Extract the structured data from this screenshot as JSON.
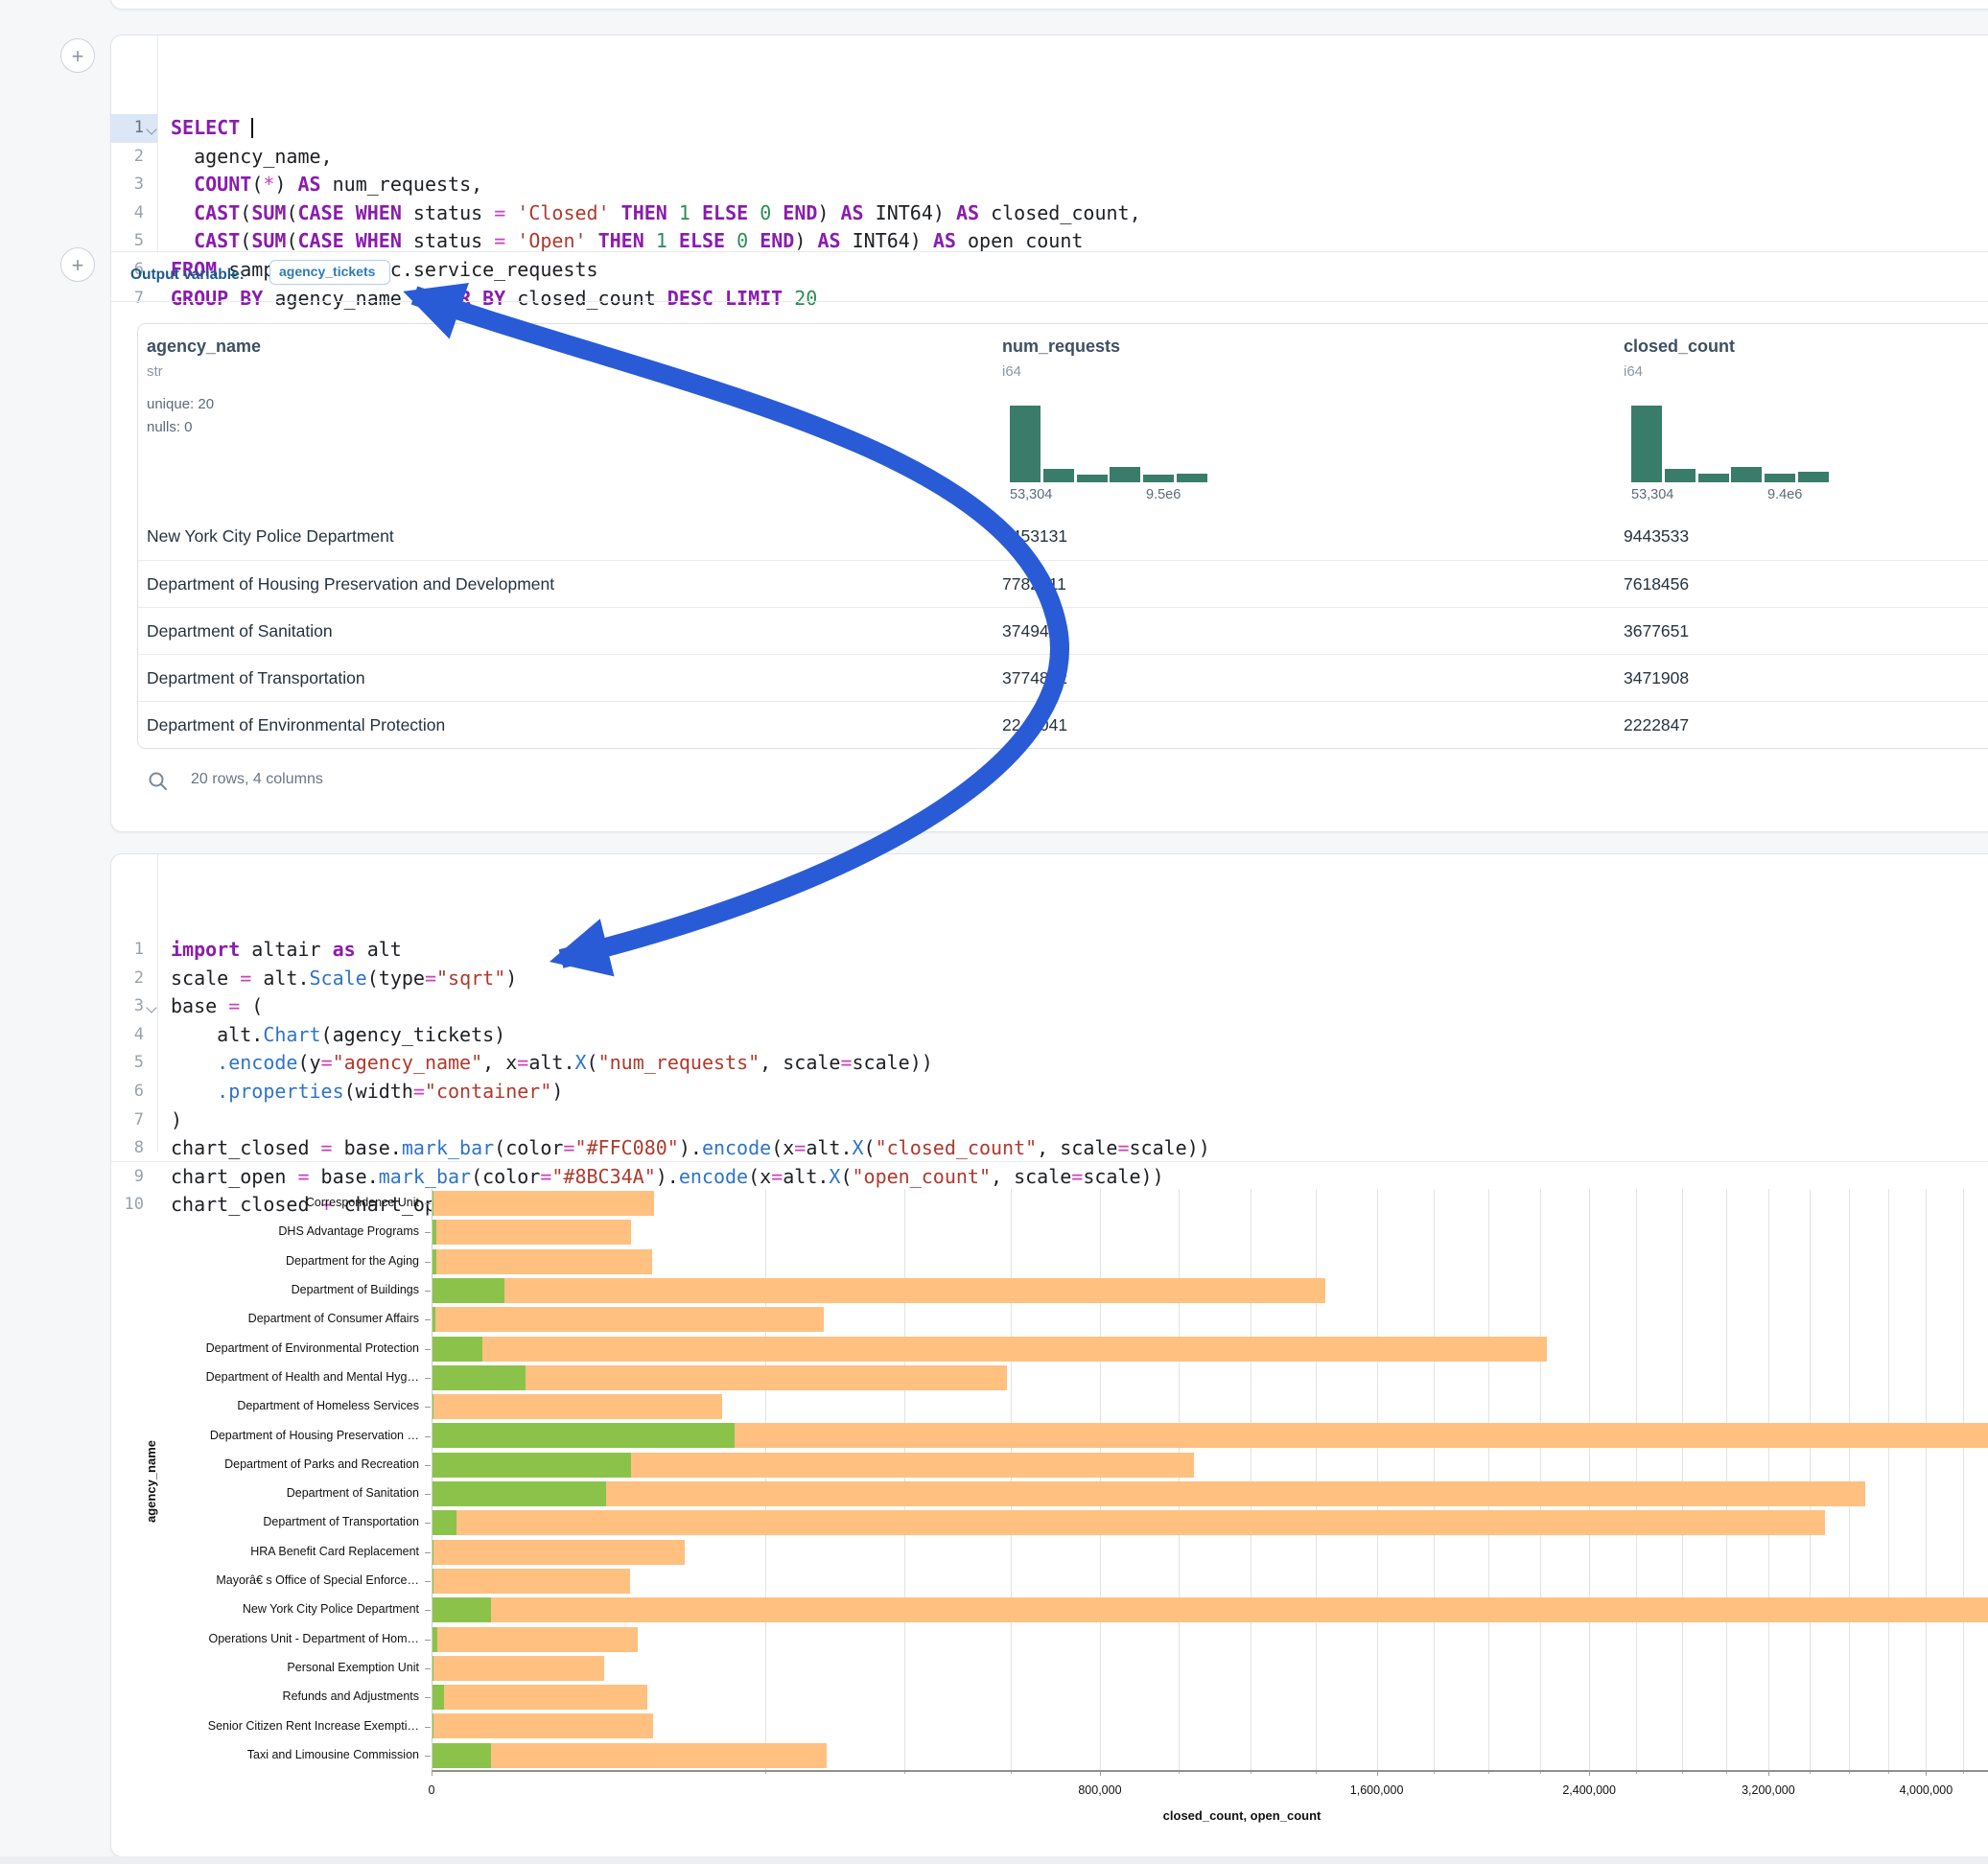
{
  "ui": {
    "add_button_label": "+",
    "output_variable_label": "Output variable:",
    "output_variable_value": "agency_tickets",
    "table_footer": "20 rows, 4 columns",
    "arrow_color": "#2A5BD7"
  },
  "sql_cell": {
    "lines": [
      {
        "n": "1",
        "chevron": true,
        "selected": true,
        "tokens": [
          [
            "kw",
            "SELECT"
          ],
          [
            "pl",
            " "
          ],
          [
            "cursor",
            ""
          ]
        ]
      },
      {
        "n": "2",
        "tokens": [
          [
            "pl",
            "  agency_name,"
          ]
        ]
      },
      {
        "n": "3",
        "tokens": [
          [
            "pl",
            "  "
          ],
          [
            "kw",
            "COUNT"
          ],
          [
            "pl",
            "("
          ],
          [
            "op",
            "*"
          ],
          [
            "pl",
            ") "
          ],
          [
            "kw",
            "AS"
          ],
          [
            "pl",
            " num_requests,"
          ]
        ]
      },
      {
        "n": "4",
        "tokens": [
          [
            "pl",
            "  "
          ],
          [
            "kw",
            "CAST"
          ],
          [
            "pl",
            "("
          ],
          [
            "kw",
            "SUM"
          ],
          [
            "pl",
            "("
          ],
          [
            "kw",
            "CASE"
          ],
          [
            "pl",
            " "
          ],
          [
            "kw",
            "WHEN"
          ],
          [
            "pl",
            " status "
          ],
          [
            "op",
            "="
          ],
          [
            "pl",
            " "
          ],
          [
            "str",
            "'Closed'"
          ],
          [
            "pl",
            " "
          ],
          [
            "kw",
            "THEN"
          ],
          [
            "pl",
            " "
          ],
          [
            "num",
            "1"
          ],
          [
            "pl",
            " "
          ],
          [
            "kw",
            "ELSE"
          ],
          [
            "pl",
            " "
          ],
          [
            "num",
            "0"
          ],
          [
            "pl",
            " "
          ],
          [
            "kw",
            "END"
          ],
          [
            "pl",
            ") "
          ],
          [
            "kw",
            "AS"
          ],
          [
            "pl",
            " INT64) "
          ],
          [
            "kw",
            "AS"
          ],
          [
            "pl",
            " closed_count,"
          ]
        ]
      },
      {
        "n": "5",
        "tokens": [
          [
            "pl",
            "  "
          ],
          [
            "kw",
            "CAST"
          ],
          [
            "pl",
            "("
          ],
          [
            "kw",
            "SUM"
          ],
          [
            "pl",
            "("
          ],
          [
            "kw",
            "CASE"
          ],
          [
            "pl",
            " "
          ],
          [
            "kw",
            "WHEN"
          ],
          [
            "pl",
            " status "
          ],
          [
            "op",
            "="
          ],
          [
            "pl",
            " "
          ],
          [
            "str",
            "'Open'"
          ],
          [
            "pl",
            " "
          ],
          [
            "kw",
            "THEN"
          ],
          [
            "pl",
            " "
          ],
          [
            "num",
            "1"
          ],
          [
            "pl",
            " "
          ],
          [
            "kw",
            "ELSE"
          ],
          [
            "pl",
            " "
          ],
          [
            "num",
            "0"
          ],
          [
            "pl",
            " "
          ],
          [
            "kw",
            "END"
          ],
          [
            "pl",
            ") "
          ],
          [
            "kw",
            "AS"
          ],
          [
            "pl",
            " INT64) "
          ],
          [
            "kw",
            "AS"
          ],
          [
            "pl",
            " open_count"
          ]
        ]
      },
      {
        "n": "6",
        "tokens": [
          [
            "kw",
            "FROM"
          ],
          [
            "pl",
            " sample_data.nyc.service_requests"
          ]
        ]
      },
      {
        "n": "7",
        "tokens": [
          [
            "kw",
            "GROUP BY"
          ],
          [
            "pl",
            " agency_name "
          ],
          [
            "kw",
            "ORDER BY"
          ],
          [
            "pl",
            " closed_count "
          ],
          [
            "kw",
            "DESC"
          ],
          [
            "pl",
            " "
          ],
          [
            "kw",
            "LIMIT"
          ],
          [
            "pl",
            " "
          ],
          [
            "num",
            "20"
          ]
        ]
      }
    ]
  },
  "dataframe": {
    "columns": [
      {
        "name": "agency_name",
        "type": "str",
        "stats": [
          "unique: 20",
          "nulls: 0"
        ],
        "x": 9
      },
      {
        "name": "num_requests",
        "type": "i64",
        "x": 901,
        "hist": {
          "bars": [
            1,
            0.17,
            0.1,
            0.2,
            0.1,
            0.11
          ],
          "min_label": "53,304",
          "max_label": "9.5e6"
        }
      },
      {
        "name": "closed_count",
        "type": "i64",
        "x": 1549,
        "hist": {
          "bars": [
            1,
            0.18,
            0.11,
            0.2,
            0.11,
            0.14
          ],
          "min_label": "53,304",
          "max_label": "9.4e6"
        }
      }
    ],
    "rows": [
      [
        "New York City Police Department",
        "9453131",
        "9443533"
      ],
      [
        "Department of Housing Preservation and Development",
        "7782211",
        "7618456"
      ],
      [
        "Department of Sanitation",
        "3749485",
        "3677651"
      ],
      [
        "Department of Transportation",
        "3774892",
        "3471908"
      ],
      [
        "Department of Environmental Protection",
        "2240041",
        "2222847"
      ]
    ]
  },
  "python_cell": {
    "lines": [
      {
        "n": "1",
        "tokens": [
          [
            "kw",
            "import"
          ],
          [
            "pl",
            " altair "
          ],
          [
            "kw",
            "as"
          ],
          [
            "pl",
            " alt"
          ]
        ]
      },
      {
        "n": "2",
        "tokens": [
          [
            "pl",
            "scale "
          ],
          [
            "op",
            "="
          ],
          [
            "pl",
            " alt."
          ],
          [
            "fn",
            "Scale"
          ],
          [
            "pl",
            "(type"
          ],
          [
            "op",
            "="
          ],
          [
            "str",
            "\"sqrt\""
          ],
          [
            "pl",
            ")"
          ]
        ]
      },
      {
        "n": "3",
        "chevron": true,
        "tokens": [
          [
            "pl",
            "base "
          ],
          [
            "op",
            "="
          ],
          [
            "pl",
            " ("
          ]
        ]
      },
      {
        "n": "4",
        "tokens": [
          [
            "pl",
            "    alt."
          ],
          [
            "fn",
            "Chart"
          ],
          [
            "pl",
            "(agency_tickets)"
          ]
        ]
      },
      {
        "n": "5",
        "tokens": [
          [
            "pl",
            "    "
          ],
          [
            "fn",
            ".encode"
          ],
          [
            "pl",
            "(y"
          ],
          [
            "op",
            "="
          ],
          [
            "str",
            "\"agency_name\""
          ],
          [
            "pl",
            ", x"
          ],
          [
            "op",
            "="
          ],
          [
            "pl",
            "alt."
          ],
          [
            "fn",
            "X"
          ],
          [
            "pl",
            "("
          ],
          [
            "str",
            "\"num_requests\""
          ],
          [
            "pl",
            ", scale"
          ],
          [
            "op",
            "="
          ],
          [
            "pl",
            "scale))"
          ]
        ]
      },
      {
        "n": "6",
        "tokens": [
          [
            "pl",
            "    "
          ],
          [
            "fn",
            ".properties"
          ],
          [
            "pl",
            "(width"
          ],
          [
            "op",
            "="
          ],
          [
            "str",
            "\"container\""
          ],
          [
            "pl",
            ")"
          ]
        ]
      },
      {
        "n": "7",
        "tokens": [
          [
            "pl",
            ")"
          ]
        ]
      },
      {
        "n": "8",
        "tokens": [
          [
            "pl",
            "chart_closed "
          ],
          [
            "op",
            "="
          ],
          [
            "pl",
            " base."
          ],
          [
            "fn",
            "mark_bar"
          ],
          [
            "pl",
            "(color"
          ],
          [
            "op",
            "="
          ],
          [
            "str",
            "\"#FFC080\""
          ],
          [
            "pl",
            ")."
          ],
          [
            "fn",
            "encode"
          ],
          [
            "pl",
            "(x"
          ],
          [
            "op",
            "="
          ],
          [
            "pl",
            "alt."
          ],
          [
            "fn",
            "X"
          ],
          [
            "pl",
            "("
          ],
          [
            "str",
            "\"closed_count\""
          ],
          [
            "pl",
            ", scale"
          ],
          [
            "op",
            "="
          ],
          [
            "pl",
            "scale))"
          ]
        ]
      },
      {
        "n": "9",
        "tokens": [
          [
            "pl",
            "chart_open "
          ],
          [
            "op",
            "="
          ],
          [
            "pl",
            " base."
          ],
          [
            "fn",
            "mark_bar"
          ],
          [
            "pl",
            "(color"
          ],
          [
            "op",
            "="
          ],
          [
            "str",
            "\"#8BC34A\""
          ],
          [
            "pl",
            ")."
          ],
          [
            "fn",
            "encode"
          ],
          [
            "pl",
            "(x"
          ],
          [
            "op",
            "="
          ],
          [
            "pl",
            "alt."
          ],
          [
            "fn",
            "X"
          ],
          [
            "pl",
            "("
          ],
          [
            "str",
            "\"open_count\""
          ],
          [
            "pl",
            ", scale"
          ],
          [
            "op",
            "="
          ],
          [
            "pl",
            "scale))"
          ]
        ]
      },
      {
        "n": "10",
        "tokens": [
          [
            "pl",
            "chart_closed "
          ],
          [
            "op",
            "+"
          ],
          [
            "pl",
            " chart_open"
          ]
        ]
      }
    ]
  },
  "chart_data": {
    "type": "bar",
    "orientation": "horizontal",
    "x_scale": "sqrt",
    "xlabel": "closed_count, open_count",
    "ylabel": "agency_name",
    "x_ticks": [
      0,
      800000,
      1600000,
      2400000,
      3200000,
      4000000
    ],
    "grid_step": 200000,
    "grid_max": 4400000,
    "legend": "none",
    "categories": [
      "Correspondence Unit",
      "DHS Advantage Programs",
      "Department for the Aging",
      "Department of Buildings",
      "Department of Consumer Affairs",
      "Department of Environmental Protection",
      "Department of Health and Mental Hyg…",
      "Department of Homeless Services",
      "Department of Housing Preservation …",
      "Department of Parks and Recreation",
      "Department of Sanitation",
      "Department of Transportation",
      "HRA Benefit Card Replacement",
      "Mayorâ€ s Office of Special Enforce…",
      "New York City Police Department",
      "Operations Unit - Department of Hom…",
      "Personal Exemption Unit",
      "Refunds and Adjustments",
      "Senior Citizen Rent Increase Exempti…",
      "Taxi and Limousine Commission"
    ],
    "series": [
      {
        "name": "closed_count",
        "color": "#FFC080",
        "values": [
          88000,
          70600,
          86400,
          1428000,
          274000,
          2222847,
          591000,
          150300,
          7618456,
          1039000,
          3677651,
          3471908,
          114000,
          69600,
          9443533,
          75500,
          52800,
          82300,
          87500,
          277800
        ]
      },
      {
        "name": "open_count",
        "color": "#8BC34A",
        "values": [
          1,
          25,
          25,
          9300,
          20,
          4500,
          15500,
          1,
          163755,
          70600,
          54000,
          1030,
          1,
          1,
          6070,
          40,
          1,
          220,
          1,
          6070
        ]
      }
    ]
  }
}
